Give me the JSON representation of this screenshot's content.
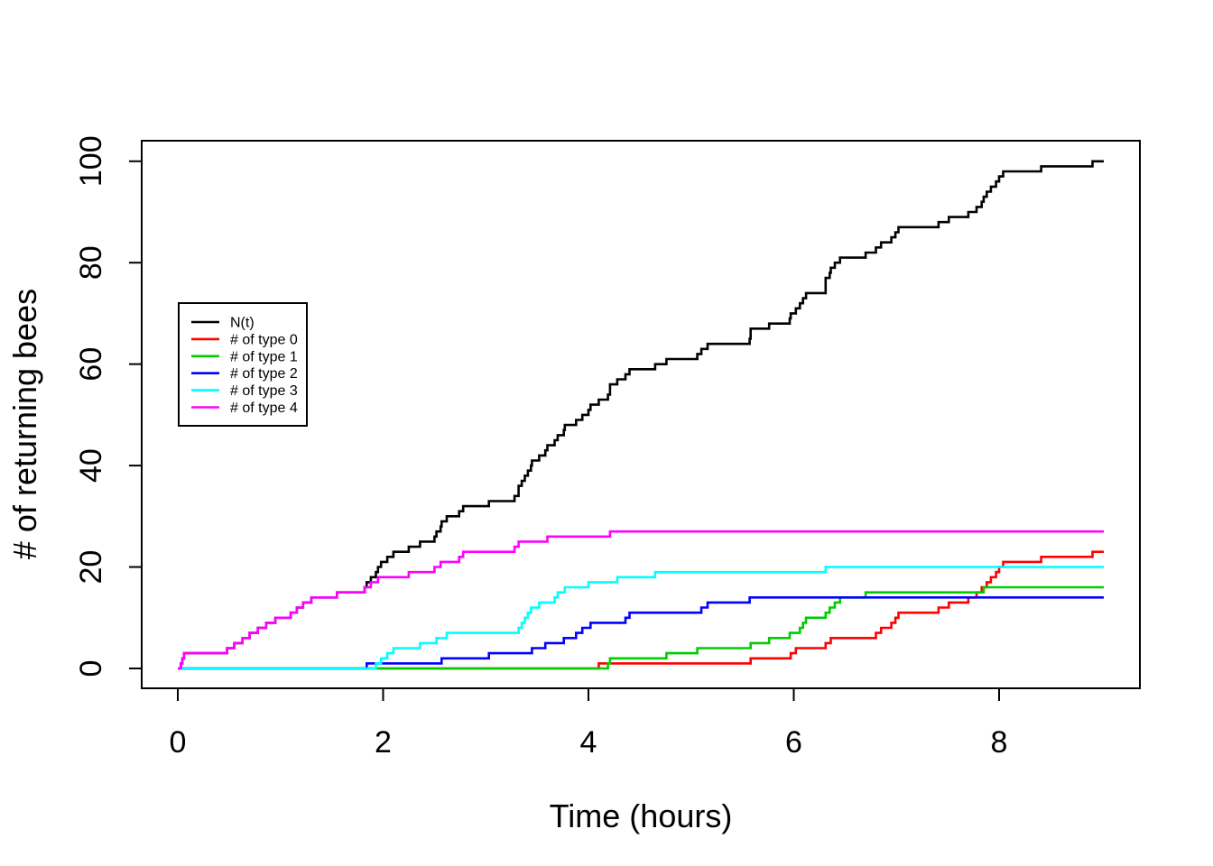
{
  "chart_data": {
    "type": "line",
    "subtype": "step-post",
    "title": "",
    "xlabel": "Time (hours)",
    "ylabel": "# of returning bees",
    "x_ticks": [
      0,
      2,
      4,
      6,
      8
    ],
    "y_ticks": [
      0,
      20,
      40,
      60,
      80,
      100
    ],
    "xlim": [
      0,
      9.02
    ],
    "ylim": [
      0,
      100
    ],
    "grid": false,
    "t_start": 0,
    "t_end": 9.02,
    "legend_position": "inside-left-middle",
    "series": [
      {
        "label": "N(t)",
        "color": "#000000",
        "derived": "sum-of-all-types",
        "jump_times": null,
        "final_value": 100
      },
      {
        "label": "# of type 0",
        "color": "#FF0000",
        "jump_times": [
          4.1,
          5.58,
          5.97,
          6.02,
          6.31,
          6.36,
          6.8,
          6.85,
          6.95,
          6.99,
          7.02,
          7.41,
          7.51,
          7.7,
          7.78,
          7.83,
          7.88,
          7.92,
          7.97,
          8.0,
          8.04,
          8.41,
          8.91
        ],
        "final_value": 23
      },
      {
        "label": "# of type 1",
        "color": "#00CD00",
        "jump_times": [
          4.19,
          4.21,
          4.76,
          5.06,
          5.58,
          5.76,
          5.96,
          6.06,
          6.09,
          6.12,
          6.31,
          6.35,
          6.4,
          6.45,
          6.7,
          7.85
        ],
        "final_value": 16
      },
      {
        "label": "# of type 2",
        "color": "#0000FF",
        "jump_times": [
          1.84,
          2.57,
          3.03,
          3.45,
          3.58,
          3.76,
          3.88,
          3.94,
          4.02,
          4.36,
          4.4,
          5.1,
          5.16,
          5.57
        ],
        "final_value": 14
      },
      {
        "label": "# of type 3",
        "color": "#00FFFF",
        "jump_times": [
          1.93,
          1.98,
          2.04,
          2.1,
          2.36,
          2.52,
          2.62,
          3.32,
          3.35,
          3.38,
          3.41,
          3.44,
          3.52,
          3.67,
          3.7,
          3.77,
          4.0,
          4.28,
          4.65,
          6.31
        ],
        "final_value": 20
      },
      {
        "label": "# of type 4",
        "color": "#FF00FF",
        "jump_times": [
          0.03,
          0.045,
          0.06,
          0.48,
          0.55,
          0.63,
          0.7,
          0.78,
          0.86,
          0.95,
          1.1,
          1.16,
          1.22,
          1.3,
          1.55,
          1.82,
          1.88,
          1.95,
          2.25,
          2.5,
          2.56,
          2.74,
          2.78,
          3.28,
          3.32,
          3.6,
          4.21
        ],
        "final_value": 27
      }
    ]
  }
}
